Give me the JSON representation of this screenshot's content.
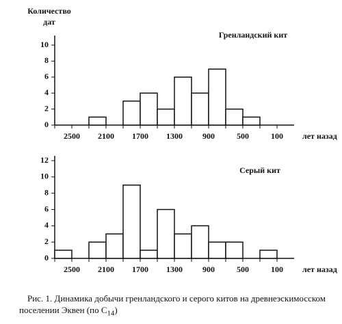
{
  "chart_data": [
    {
      "type": "histogram",
      "y_label": [
        "Количество",
        "дат"
      ],
      "annotation": "Гренландский кит",
      "bins": [
        2700,
        2500,
        2300,
        2100,
        1900,
        1700,
        1500,
        1300,
        1100,
        900,
        700,
        500,
        300,
        100
      ],
      "values": [
        0,
        0,
        1,
        0,
        3,
        4,
        2,
        6,
        4,
        7,
        2,
        1,
        0
      ],
      "xlim": [
        2700,
        -100
      ],
      "xticks": [
        2500,
        2100,
        1700,
        1300,
        900,
        500,
        100
      ],
      "x_label": "лет назад",
      "ylim": [
        0,
        10
      ],
      "yticks": [
        0,
        2,
        4,
        6,
        8,
        10
      ],
      "color": "#ffffff"
    },
    {
      "type": "histogram",
      "annotation": "Серый кит",
      "bins": [
        2700,
        2500,
        2300,
        2100,
        1900,
        1700,
        1500,
        1300,
        1100,
        900,
        700,
        500,
        300,
        100
      ],
      "values": [
        1,
        0,
        2,
        3,
        9,
        1,
        6,
        3,
        4,
        2,
        2,
        0,
        1
      ],
      "xlim": [
        2700,
        -100
      ],
      "xticks": [
        2500,
        2100,
        1700,
        1300,
        900,
        500,
        100
      ],
      "x_label": "лет назад",
      "ylim": [
        0,
        12
      ],
      "yticks": [
        0,
        2,
        4,
        6,
        8,
        10,
        12
      ],
      "color": "#ffffff"
    }
  ],
  "caption": {
    "text": "Рис. 1. Динамика добычи гренландского и серого китов на древнеэскимосском поселении Эквен (по C",
    "subscript": "14",
    "end": ")"
  }
}
